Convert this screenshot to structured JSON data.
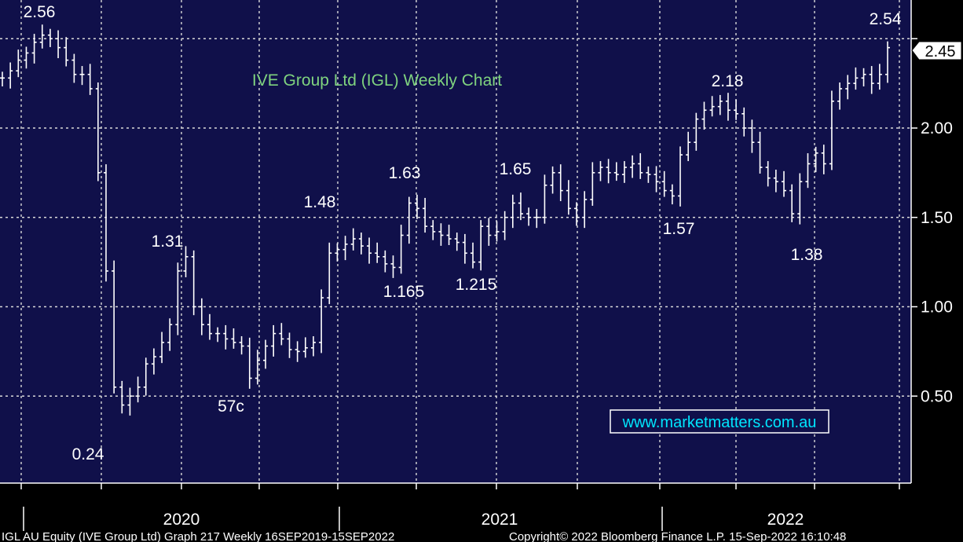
{
  "chart_data": {
    "type": "ohlc",
    "title": "IVE Group Ltd (IGL) Weekly Chart",
    "y_ticks": [
      "0.50",
      "1.00",
      "1.50",
      "2.00"
    ],
    "ylim": [
      0.0,
      2.6
    ],
    "x_years": [
      "2020",
      "2021",
      "2022"
    ],
    "last_price": "2.45",
    "watermark": "www.marketmatters.com.au",
    "footer_left": "IGL AU Equity (IVE Group Ltd) Graph 217  Weekly 16SEP2019-15SEP2022",
    "footer_right": "Copyright© 2022 Bloomberg Finance L.P.        15-Sep-2022 16:10:48",
    "annotations": [
      {
        "label": "2.56",
        "value": 2.56
      },
      {
        "label": "0.24",
        "value": 0.24
      },
      {
        "label": "1.31",
        "value": 1.31
      },
      {
        "label": "57c",
        "value": 0.57
      },
      {
        "label": "1.48",
        "value": 1.48
      },
      {
        "label": "1.165",
        "value": 1.165
      },
      {
        "label": "1.63",
        "value": 1.63
      },
      {
        "label": "1.215",
        "value": 1.215
      },
      {
        "label": "1.65",
        "value": 1.65
      },
      {
        "label": "1.57",
        "value": 1.57
      },
      {
        "label": "2.18",
        "value": 2.18
      },
      {
        "label": "1.38",
        "value": 1.38
      },
      {
        "label": "2.54",
        "value": 2.54
      }
    ],
    "weekly_close": [
      2.28,
      2.32,
      2.38,
      2.42,
      2.48,
      2.52,
      2.5,
      2.45,
      2.38,
      2.3,
      2.3,
      2.22,
      1.75,
      1.2,
      0.55,
      0.45,
      0.5,
      0.55,
      0.68,
      0.72,
      0.8,
      0.9,
      1.2,
      1.28,
      1.0,
      0.9,
      0.85,
      0.85,
      0.82,
      0.8,
      0.78,
      0.6,
      0.7,
      0.78,
      0.85,
      0.82,
      0.76,
      0.75,
      0.77,
      0.8,
      1.05,
      1.3,
      1.32,
      1.35,
      1.38,
      1.34,
      1.3,
      1.28,
      1.24,
      1.22,
      1.4,
      1.58,
      1.55,
      1.45,
      1.42,
      1.4,
      1.38,
      1.36,
      1.3,
      1.25,
      1.45,
      1.4,
      1.42,
      1.5,
      1.58,
      1.52,
      1.5,
      1.5,
      1.68,
      1.75,
      1.65,
      1.55,
      1.5,
      1.6,
      1.75,
      1.78,
      1.75,
      1.74,
      1.78,
      1.8,
      1.75,
      1.74,
      1.7,
      1.65,
      1.62,
      1.85,
      1.92,
      2.05,
      2.1,
      2.12,
      2.15,
      2.1,
      2.08,
      2.0,
      1.92,
      1.78,
      1.72,
      1.7,
      1.65,
      1.52,
      1.7,
      1.8,
      1.86,
      1.8,
      2.15,
      2.22,
      2.25,
      2.28,
      2.3,
      2.25,
      2.3,
      2.45
    ]
  }
}
